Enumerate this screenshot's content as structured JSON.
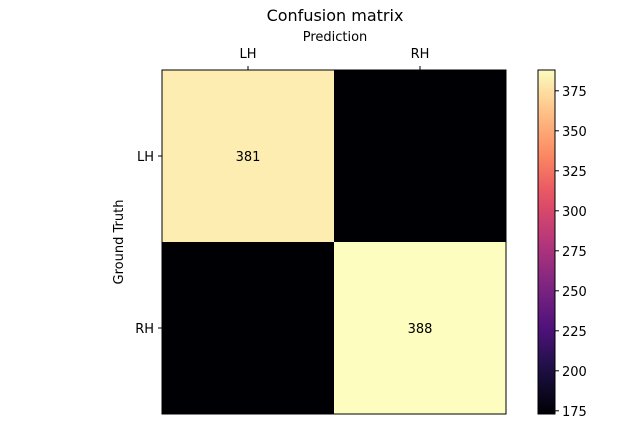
{
  "chart_data": {
    "type": "heatmap",
    "title": "Confusion matrix",
    "xlabel": "Prediction",
    "ylabel": "Ground Truth",
    "x_categories": [
      "LH",
      "RH"
    ],
    "y_categories": [
      "LH",
      "RH"
    ],
    "values": [
      [
        381,
        173
      ],
      [
        173,
        388
      ]
    ],
    "colormap": "magma",
    "colorbar": {
      "range": [
        173,
        388
      ],
      "ticks": [
        175,
        200,
        225,
        250,
        275,
        300,
        325,
        350,
        375
      ]
    }
  }
}
